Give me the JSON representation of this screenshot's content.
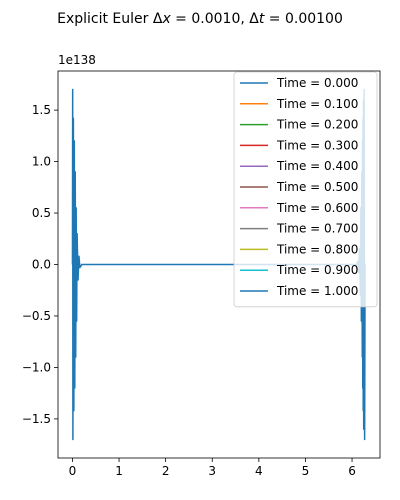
{
  "chart_data": {
    "type": "line",
    "title": "Explicit Euler Δx = 0.0010, Δt = 0.00100",
    "title_parts": {
      "prefix": "Explicit Euler Δ",
      "var1": "x",
      "mid": " = 0.0010, Δ",
      "var2": "t",
      "suffix": " = 0.00100"
    },
    "y_offset_label": "1e138",
    "xlabel": "",
    "ylabel": "",
    "xlim": [
      -0.31,
      6.6
    ],
    "ylim": [
      -1.88,
      1.88
    ],
    "x_ticks": [
      0,
      1,
      2,
      3,
      4,
      5,
      6
    ],
    "x_tick_labels": [
      "0",
      "1",
      "2",
      "3",
      "4",
      "5",
      "6"
    ],
    "y_ticks": [
      -1.5,
      -1.0,
      -0.5,
      0.0,
      0.5,
      1.0,
      1.5
    ],
    "y_tick_labels": [
      "−1.5",
      "−1.0",
      "−0.5",
      "0.0",
      "0.5",
      "1.0",
      "1.5"
    ],
    "grid": false,
    "legend_position": "top-right",
    "series": [
      {
        "name": "Time = 0.000",
        "color": "#1f77b4"
      },
      {
        "name": "Time = 0.100",
        "color": "#ff7f0e"
      },
      {
        "name": "Time = 0.200",
        "color": "#2ca02c"
      },
      {
        "name": "Time = 0.300",
        "color": "#d62728"
      },
      {
        "name": "Time = 0.400",
        "color": "#9467bd"
      },
      {
        "name": "Time = 0.500",
        "color": "#8c564b"
      },
      {
        "name": "Time = 0.600",
        "color": "#e377c2"
      },
      {
        "name": "Time = 0.700",
        "color": "#7f7f7f"
      },
      {
        "name": "Time = 0.800",
        "color": "#bcbd22"
      },
      {
        "name": "Time = 0.900",
        "color": "#17becf"
      },
      {
        "name": "Time = 1.000",
        "color": "#1f77b4"
      }
    ],
    "visible_curve": {
      "series_index": 10,
      "x": [
        0.0,
        0.005,
        0.01,
        0.02,
        0.03,
        0.04,
        0.05,
        0.06,
        0.07,
        0.08,
        0.09,
        0.1,
        0.12,
        0.14,
        0.16,
        0.2,
        1.0,
        3.0,
        6.1,
        6.12,
        6.14,
        6.16,
        6.18,
        6.19,
        6.2,
        6.21,
        6.22,
        6.225,
        6.23,
        6.235,
        6.24,
        6.245,
        6.25,
        6.26,
        6.27,
        6.28
      ],
      "y": [
        0.0,
        1.7,
        -1.7,
        1.42,
        -1.42,
        1.2,
        -1.2,
        0.9,
        -0.9,
        0.55,
        -0.55,
        0.3,
        -0.15,
        0.08,
        -0.03,
        0.0,
        0.0,
        0.0,
        0.0,
        0.03,
        -0.08,
        0.15,
        -0.3,
        0.55,
        -0.55,
        0.9,
        -0.9,
        1.2,
        -1.2,
        1.42,
        -1.42,
        1.6,
        -1.6,
        1.7,
        -1.7,
        0.0
      ]
    }
  }
}
